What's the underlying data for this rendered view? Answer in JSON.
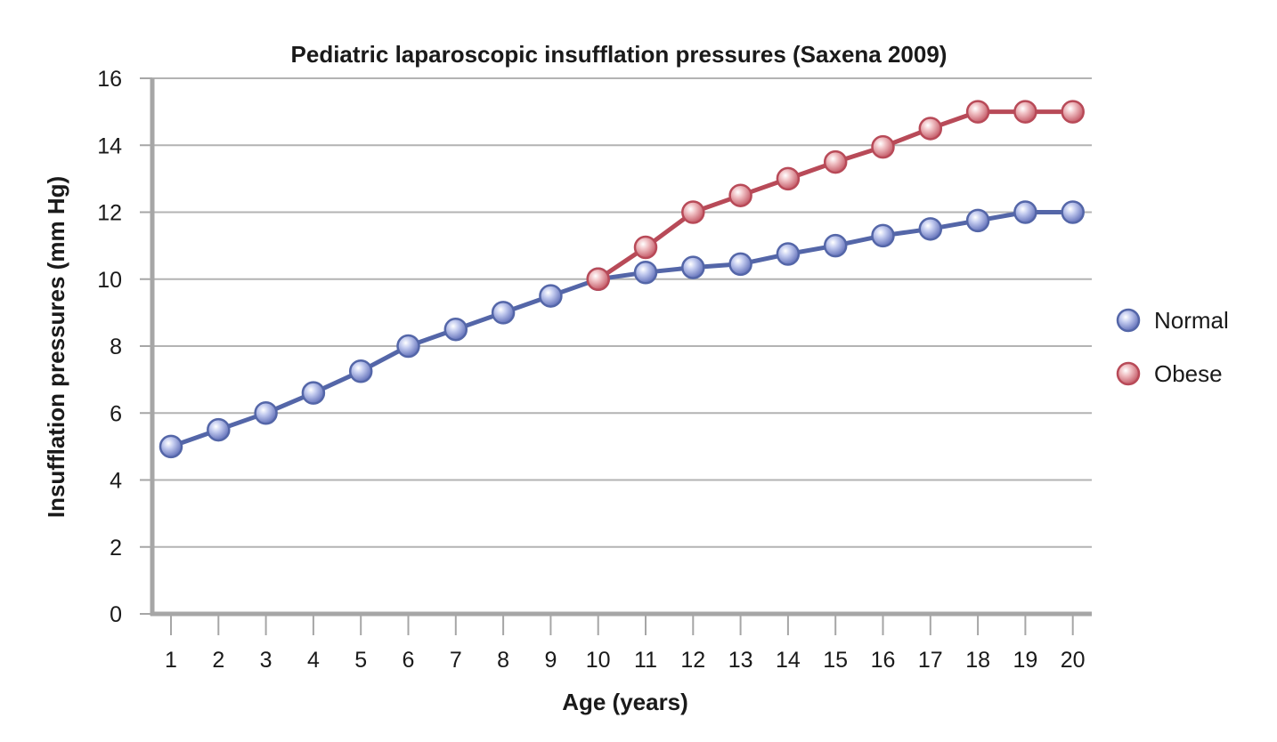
{
  "chart_data": {
    "type": "line",
    "title": "Pediatric laparoscopic insufflation pressures (Saxena 2009)",
    "xlabel": "Age (years)",
    "ylabel": "Insufflation pressures (mm Hg)",
    "x": [
      1,
      2,
      3,
      4,
      5,
      6,
      7,
      8,
      9,
      10,
      11,
      12,
      13,
      14,
      15,
      16,
      17,
      18,
      19,
      20
    ],
    "xlim": [
      1,
      20
    ],
    "ylim": [
      0,
      16
    ],
    "yticks": [
      0,
      2,
      4,
      6,
      8,
      10,
      12,
      14,
      16
    ],
    "grid": true,
    "legend_position": "right",
    "series": [
      {
        "name": "Normal",
        "color": "#5466a8",
        "x": [
          1,
          2,
          3,
          4,
          5,
          6,
          7,
          8,
          9,
          10,
          11,
          12,
          13,
          14,
          15,
          16,
          17,
          18,
          19,
          20
        ],
        "values": [
          5,
          5.5,
          6,
          6.6,
          7.25,
          8,
          8.5,
          9,
          9.5,
          10,
          10.2,
          10.35,
          10.45,
          10.75,
          11,
          11.3,
          11.5,
          11.75,
          12,
          12
        ]
      },
      {
        "name": "Obese",
        "color": "#b84a58",
        "x": [
          10,
          11,
          12,
          13,
          14,
          15,
          16,
          17,
          18,
          19,
          20
        ],
        "values": [
          10,
          10.95,
          12,
          12.5,
          13,
          13.5,
          13.95,
          14.5,
          15,
          15,
          15
        ]
      }
    ]
  }
}
